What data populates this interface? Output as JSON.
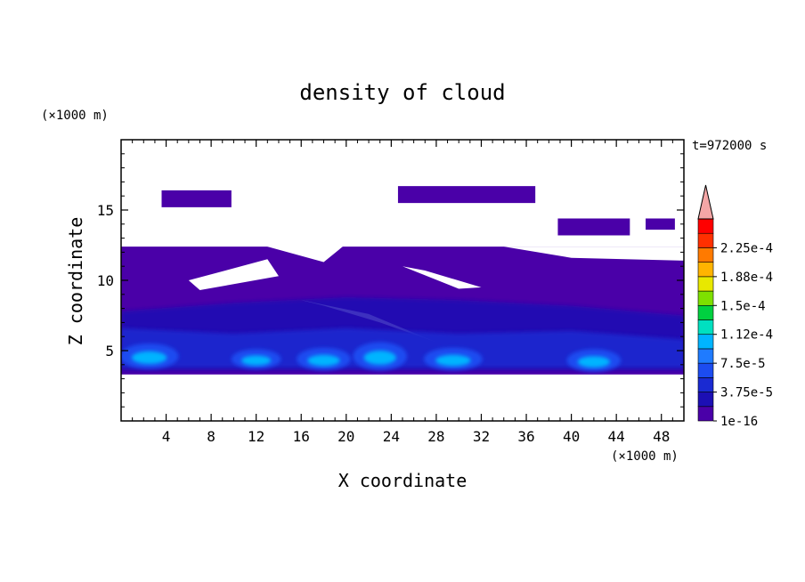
{
  "chart_data": {
    "type": "heatmap",
    "title": "density of cloud",
    "xlabel": "X coordinate",
    "ylabel": "Z coordinate",
    "x_unit": "(×1000 m)",
    "y_unit": "(×1000 m)",
    "time_label": "t=972000 s",
    "xlim": [
      0,
      50
    ],
    "ylim": [
      0,
      20
    ],
    "xticks": [
      4,
      8,
      12,
      16,
      20,
      24,
      28,
      32,
      36,
      40,
      44,
      48
    ],
    "yticks": [
      5,
      10,
      15
    ],
    "colorbar": {
      "levels": [
        1e-16,
        1.875e-05,
        3.75e-05,
        5.625e-05,
        7.5e-05,
        9.375e-05,
        0.000112,
        0.000131,
        0.00015,
        0.000169,
        0.000188,
        0.000206,
        0.000225,
        0.000244
      ],
      "tick_labels": [
        "1e-16",
        "3.75e-5",
        "7.5e-5",
        "1.12e-4",
        "1.5e-4",
        "1.88e-4",
        "2.25e-4"
      ],
      "colors": [
        "#4a00a8",
        "#1c0fb4",
        "#1a2ad2",
        "#1c4cf0",
        "#1f7bff",
        "#00b4ff",
        "#00e0c0",
        "#00d040",
        "#7ee000",
        "#e8e800",
        "#ffb400",
        "#ff7a00",
        "#ff3000",
        "#ff0000"
      ],
      "extend_color": "#f4a6a6"
    },
    "regions": [
      {
        "level": 0,
        "bounds": [
          [
            0.0,
            3.3
          ],
          [
            50.0,
            3.3
          ],
          [
            50.0,
            12.4
          ],
          [
            0.0,
            12.4
          ]
        ],
        "note": "main cloud deck"
      },
      {
        "level": 0,
        "bounds": [
          [
            3.6,
            16.4
          ],
          [
            9.8,
            16.4
          ],
          [
            9.8,
            15.2
          ],
          [
            3.6,
            15.2
          ]
        ]
      },
      {
        "level": 0,
        "bounds": [
          [
            24.6,
            16.7
          ],
          [
            36.8,
            16.7
          ],
          [
            36.8,
            15.5
          ],
          [
            24.6,
            15.5
          ]
        ]
      },
      {
        "level": 0,
        "bounds": [
          [
            38.8,
            14.4
          ],
          [
            45.2,
            14.4
          ],
          [
            45.2,
            13.2
          ],
          [
            38.8,
            13.2
          ]
        ]
      },
      {
        "level": 0,
        "bounds": [
          [
            46.6,
            14.4
          ],
          [
            49.2,
            14.4
          ],
          [
            49.2,
            13.6
          ],
          [
            46.6,
            13.6
          ]
        ]
      },
      {
        "level": 2,
        "cells": "convective cores near z=4-6 km at x≈3, 12, 18, 23, 29, 42 km"
      },
      {
        "level": 5,
        "cells": "peak values ~9e-5 at cloud base 4-5 km"
      }
    ]
  }
}
